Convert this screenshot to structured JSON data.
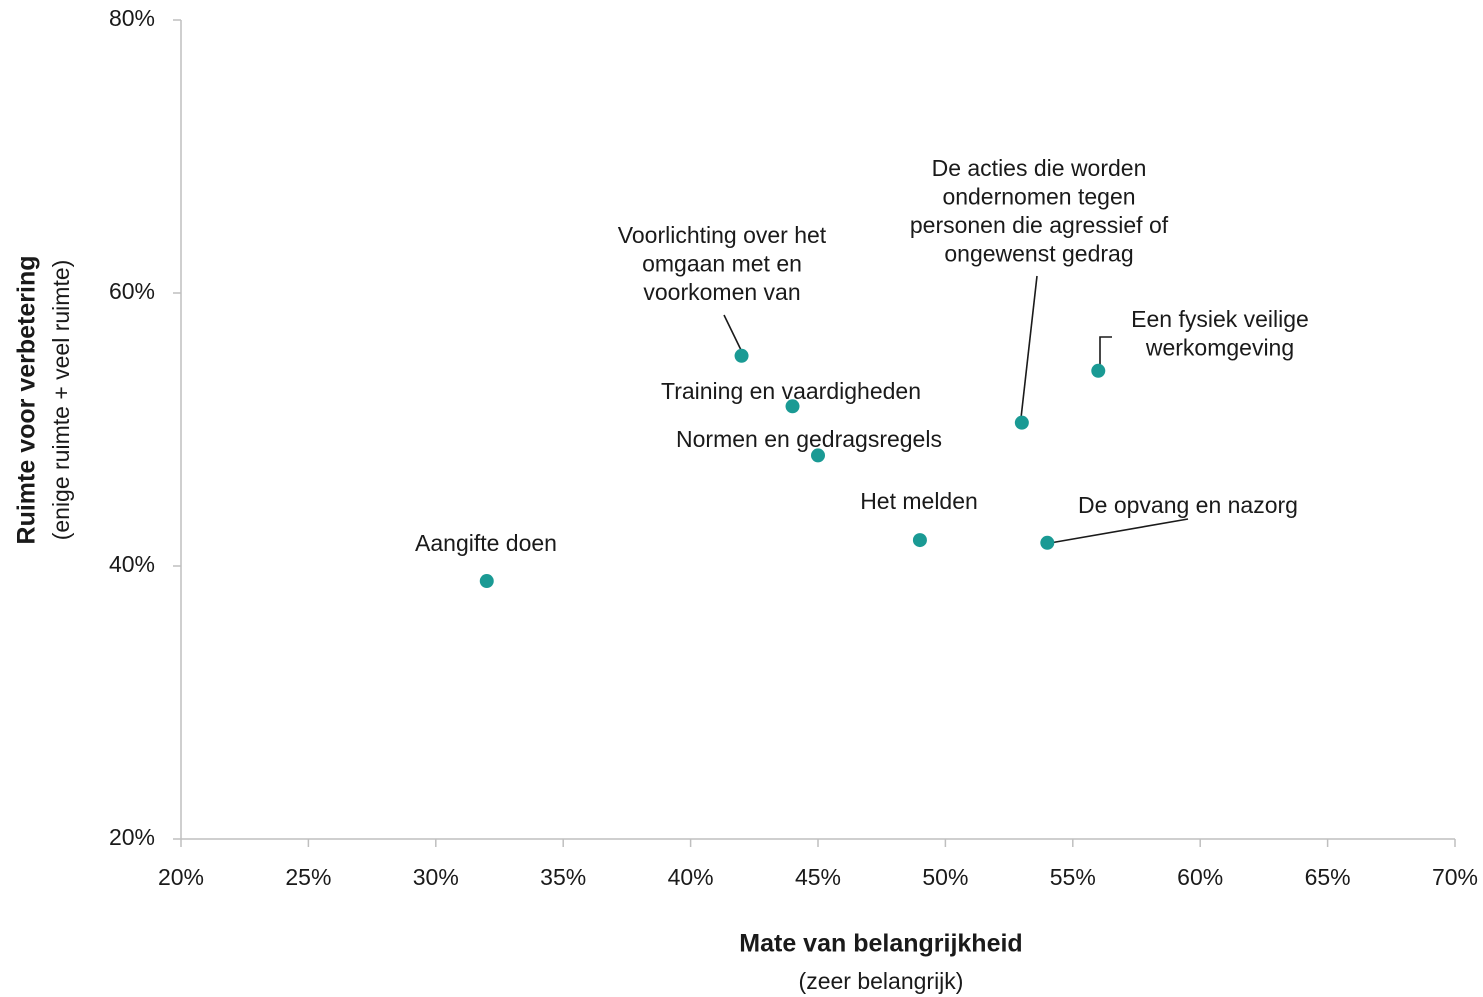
{
  "chart_data": {
    "type": "scatter",
    "x_label": "Mate van belangrijkheid",
    "x_sublabel": "(zeer belangrijk)",
    "y_label": "Ruimte voor verbetering",
    "y_sublabel": "(enige ruimte + veel ruimte)",
    "labels": [
      [
        "Aangifte doen"
      ],
      [
        "Voorlichting over het",
        "omgaan met en",
        "voorkomen van"
      ],
      [
        "Training en vaardigheden"
      ],
      [
        "Normen en gedragsregels"
      ],
      [
        "Het melden"
      ],
      [
        "De acties die worden",
        "ondernomen tegen",
        "personen die agressief of",
        "ongewenst gedrag"
      ],
      [
        "Een fysiek veilige",
        "werkomgeving"
      ],
      [
        "De opvang en nazorg"
      ]
    ],
    "x": [
      32,
      42,
      44,
      45,
      49,
      53,
      56,
      54
    ],
    "values": [
      38.9,
      55.4,
      51.7,
      48.1,
      41.9,
      50.5,
      54.3,
      41.7
    ],
    "color": "#1a9a94",
    "xlim": [
      20,
      70
    ],
    "xticks": [
      {
        "value": 20,
        "label": "20%"
      },
      {
        "value": 25,
        "label": "25%"
      },
      {
        "value": 30,
        "label": "30%"
      },
      {
        "value": 35,
        "label": "35%"
      },
      {
        "value": 40,
        "label": "40%"
      },
      {
        "value": 45,
        "label": "45%"
      },
      {
        "value": 50,
        "label": "50%"
      },
      {
        "value": 55,
        "label": "55%"
      },
      {
        "value": 60,
        "label": "60%"
      },
      {
        "value": 65,
        "label": "65%"
      },
      {
        "value": 70,
        "label": "70%"
      }
    ],
    "ylim": [
      20,
      80
    ],
    "yticks": [
      {
        "value": 20,
        "label": "20%"
      },
      {
        "value": 40,
        "label": "40%"
      },
      {
        "value": 60,
        "label": "60%"
      },
      {
        "value": 80,
        "label": "80%"
      }
    ]
  }
}
